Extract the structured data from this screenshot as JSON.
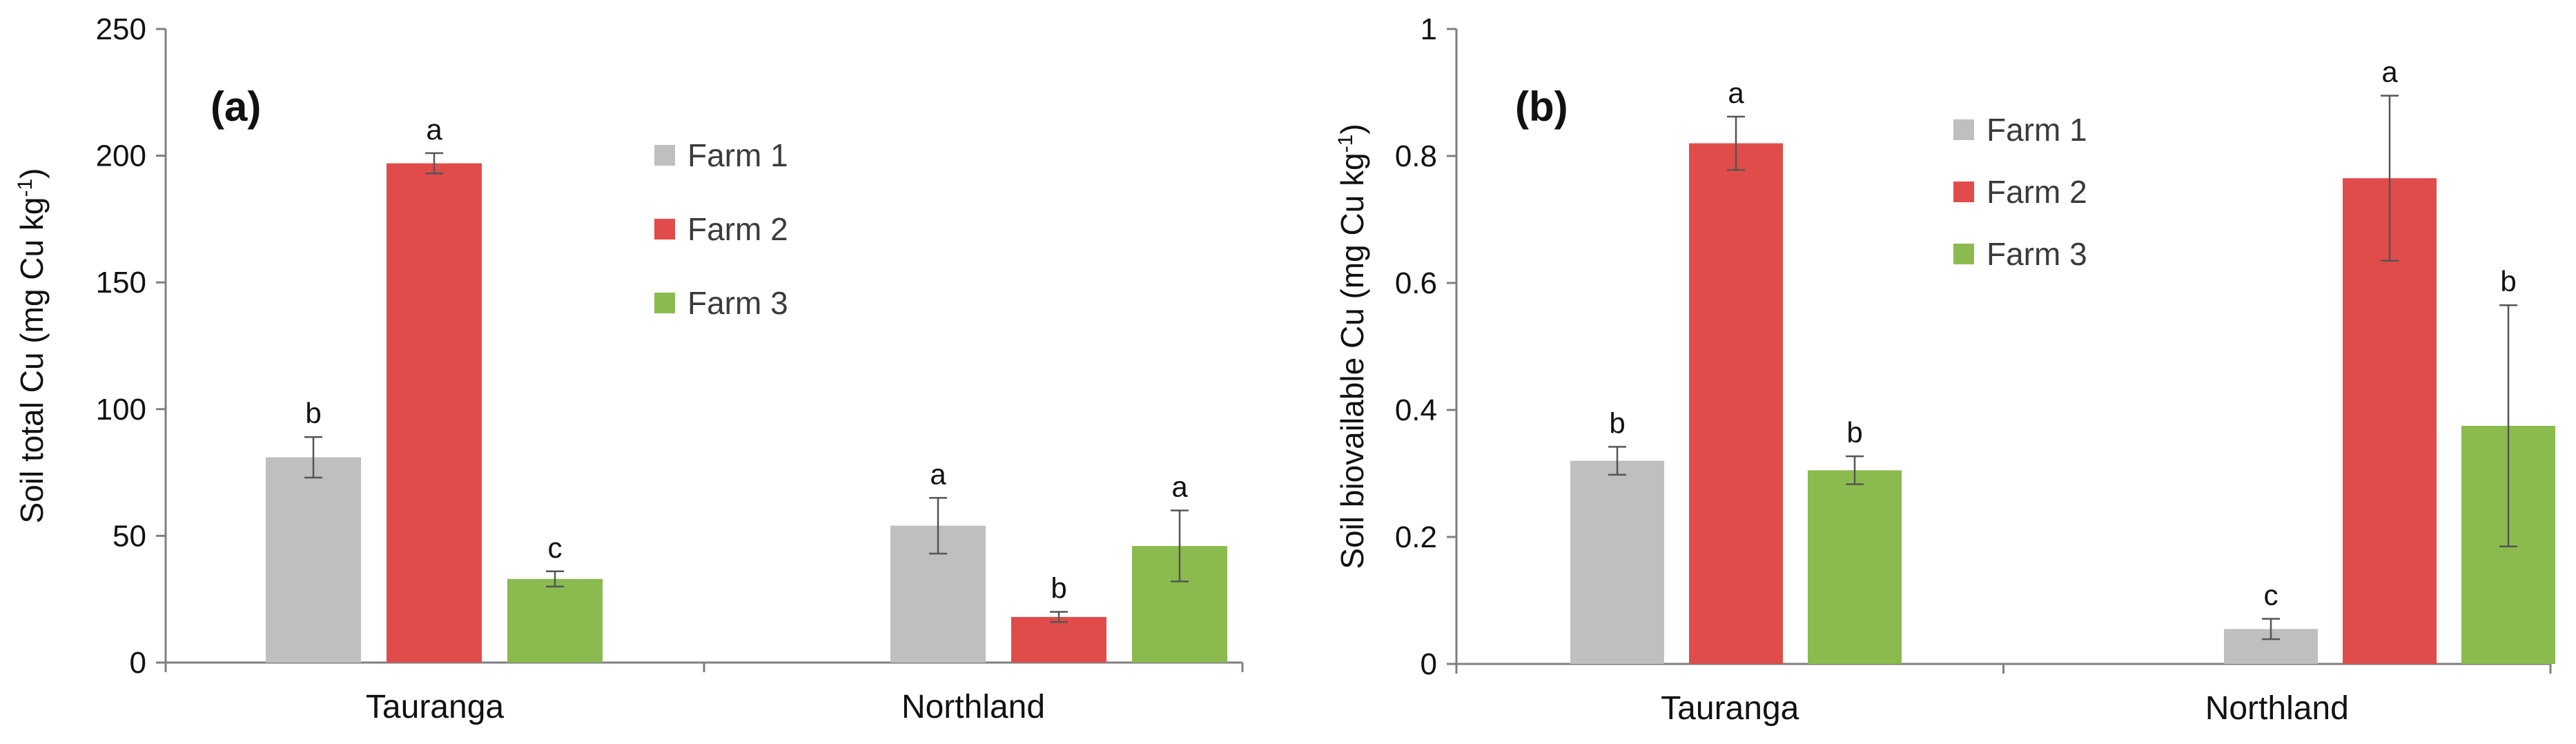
{
  "chart_data": [
    {
      "type": "bar",
      "panel_label": "(a)",
      "ylabel": "Soil total Cu (mg Cu kg",
      "ylabel_sup": "-1",
      "ylabel_end": ")",
      "ylim": [
        0,
        250
      ],
      "yticks": [
        "0",
        "50",
        "100",
        "150",
        "200",
        "250"
      ],
      "ytick_values": [
        0,
        50,
        100,
        150,
        200,
        250
      ],
      "categories": [
        "Tauranga",
        "Northland"
      ],
      "legend_position": "top-center",
      "series": [
        {
          "name": "Farm 1",
          "color": "#bfbfbf",
          "values": [
            81,
            54
          ],
          "errors": [
            8,
            11
          ],
          "letters": [
            "b",
            "a"
          ]
        },
        {
          "name": "Farm 2",
          "color": "#e04c4a",
          "values": [
            197,
            18
          ],
          "errors": [
            4,
            2
          ],
          "letters": [
            "a",
            "b"
          ]
        },
        {
          "name": "Farm 3",
          "color": "#8bbb4f",
          "values": [
            33,
            46
          ],
          "errors": [
            3,
            14
          ],
          "letters": [
            "c",
            "a"
          ]
        }
      ]
    },
    {
      "type": "bar",
      "panel_label": "(b)",
      "ylabel": "Soil biovailable Cu (mg Cu kg",
      "ylabel_sup": "-1",
      "ylabel_end": ")",
      "ylim": [
        0,
        1
      ],
      "yticks": [
        "0",
        "0.2",
        "0.4",
        "0.6",
        "0.8",
        "1"
      ],
      "ytick_values": [
        0,
        0.2,
        0.4,
        0.6,
        0.8,
        1
      ],
      "categories": [
        "Tauranga",
        "Northland"
      ],
      "legend_position": "top-center",
      "series": [
        {
          "name": "Farm 1",
          "color": "#bfbfbf",
          "values": [
            0.32,
            0.055
          ],
          "errors": [
            0.022,
            0.016
          ],
          "letters": [
            "b",
            "c"
          ]
        },
        {
          "name": "Farm 2",
          "color": "#e04c4a",
          "values": [
            0.82,
            0.765
          ],
          "errors": [
            0.042,
            0.13
          ],
          "letters": [
            "a",
            "a"
          ]
        },
        {
          "name": "Farm 3",
          "color": "#8bbb4f",
          "values": [
            0.305,
            0.375
          ],
          "errors": [
            0.022,
            0.19
          ],
          "letters": [
            "b",
            "b"
          ]
        }
      ]
    }
  ]
}
